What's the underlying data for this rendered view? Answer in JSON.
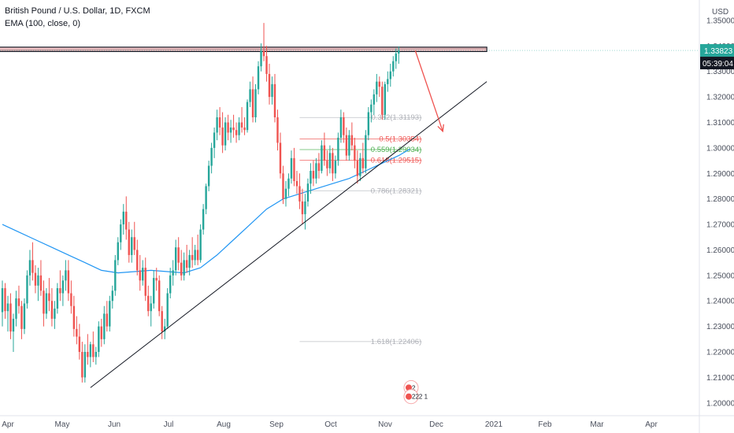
{
  "header": {
    "symbol_line": "British Pound / U.S. Dollar, 1D, FXCM",
    "indicator_line": "EMA (100, close, 0)"
  },
  "colors": {
    "up": "#26a69a",
    "down": "#ef5350",
    "ema": "#2196f3",
    "trendline": "#131722",
    "arrow": "#ef5350",
    "zone_fill": "#f3c5c8",
    "zone_border": "#131722",
    "last_price_badge": "#26a69a",
    "countdown_badge": "#131722",
    "fib_grey": "#9598a1",
    "fib_red": "#ef5350",
    "fib_green": "#4caf50"
  },
  "chart_data": {
    "type": "candlestick",
    "title": "British Pound / U.S. Dollar, 1D, FXCM",
    "currency": "USD",
    "ylim": [
      1.195,
      1.358
    ],
    "y_ticks": [
      "1.35000",
      "1.34000",
      "1.33000",
      "1.32000",
      "1.31000",
      "1.30000",
      "1.29000",
      "1.28000",
      "1.27000",
      "1.26000",
      "1.25000",
      "1.24000",
      "1.23000",
      "1.22000",
      "1.21000",
      "1.20000"
    ],
    "x_ticks": [
      "Apr",
      "May",
      "Jun",
      "Jul",
      "Aug",
      "Sep",
      "Oct",
      "Nov",
      "Dec",
      "2021",
      "Feb",
      "Mar",
      "Apr"
    ],
    "last_price": "1.33823",
    "countdown": "05:39:04",
    "ohlc_start": "2020-03-25",
    "ohlc": [
      [
        1.2356,
        1.248,
        1.23,
        1.245
      ],
      [
        1.245,
        1.247,
        1.233,
        1.236
      ],
      [
        1.236,
        1.242,
        1.228,
        1.239
      ],
      [
        1.239,
        1.243,
        1.225,
        1.228
      ],
      [
        1.228,
        1.235,
        1.22,
        1.233
      ],
      [
        1.233,
        1.244,
        1.23,
        1.241
      ],
      [
        1.241,
        1.246,
        1.235,
        1.238
      ],
      [
        1.238,
        1.24,
        1.225,
        1.229
      ],
      [
        1.229,
        1.241,
        1.227,
        1.239
      ],
      [
        1.239,
        1.252,
        1.237,
        1.25
      ],
      [
        1.25,
        1.26,
        1.246,
        1.256
      ],
      [
        1.256,
        1.263,
        1.248,
        1.251
      ],
      [
        1.251,
        1.254,
        1.243,
        1.246
      ],
      [
        1.246,
        1.253,
        1.24,
        1.25
      ],
      [
        1.25,
        1.256,
        1.242,
        1.244
      ],
      [
        1.244,
        1.248,
        1.23,
        1.235
      ],
      [
        1.235,
        1.245,
        1.233,
        1.243
      ],
      [
        1.243,
        1.249,
        1.236,
        1.24
      ],
      [
        1.24,
        1.245,
        1.23,
        1.233
      ],
      [
        1.233,
        1.24,
        1.229,
        1.237
      ],
      [
        1.237,
        1.247,
        1.235,
        1.245
      ],
      [
        1.245,
        1.252,
        1.24,
        1.243
      ],
      [
        1.243,
        1.25,
        1.238,
        1.248
      ],
      [
        1.248,
        1.256,
        1.244,
        1.252
      ],
      [
        1.252,
        1.256,
        1.24,
        1.243
      ],
      [
        1.243,
        1.248,
        1.235,
        1.238
      ],
      [
        1.238,
        1.242,
        1.226,
        1.229
      ],
      [
        1.229,
        1.234,
        1.223,
        1.226
      ],
      [
        1.226,
        1.231,
        1.217,
        1.22
      ],
      [
        1.22,
        1.224,
        1.208,
        1.21
      ],
      [
        1.21,
        1.223,
        1.208,
        1.22
      ],
      [
        1.22,
        1.227,
        1.215,
        1.218
      ],
      [
        1.218,
        1.224,
        1.214,
        1.223
      ],
      [
        1.223,
        1.228,
        1.216,
        1.218
      ],
      [
        1.218,
        1.222,
        1.215,
        1.22
      ],
      [
        1.22,
        1.232,
        1.218,
        1.23
      ],
      [
        1.23,
        1.233,
        1.222,
        1.225
      ],
      [
        1.225,
        1.238,
        1.223,
        1.235
      ],
      [
        1.235,
        1.24,
        1.228,
        1.23
      ],
      [
        1.23,
        1.242,
        1.228,
        1.24
      ],
      [
        1.24,
        1.246,
        1.237,
        1.244
      ],
      [
        1.244,
        1.258,
        1.242,
        1.256
      ],
      [
        1.256,
        1.265,
        1.254,
        1.263
      ],
      [
        1.263,
        1.272,
        1.26,
        1.27
      ],
      [
        1.27,
        1.278,
        1.266,
        1.275
      ],
      [
        1.275,
        1.281,
        1.264,
        1.268
      ],
      [
        1.268,
        1.271,
        1.255,
        1.258
      ],
      [
        1.258,
        1.268,
        1.255,
        1.265
      ],
      [
        1.265,
        1.271,
        1.258,
        1.26
      ],
      [
        1.26,
        1.264,
        1.25,
        1.252
      ],
      [
        1.252,
        1.258,
        1.244,
        1.248
      ],
      [
        1.248,
        1.256,
        1.246,
        1.253
      ],
      [
        1.253,
        1.257,
        1.24,
        1.242
      ],
      [
        1.242,
        1.246,
        1.234,
        1.236
      ],
      [
        1.236,
        1.242,
        1.23,
        1.239
      ],
      [
        1.239,
        1.252,
        1.237,
        1.249
      ],
      [
        1.249,
        1.253,
        1.244,
        1.248
      ],
      [
        1.248,
        1.25,
        1.234,
        1.236
      ],
      [
        1.236,
        1.238,
        1.225,
        1.228
      ],
      [
        1.228,
        1.233,
        1.225,
        1.23
      ],
      [
        1.23,
        1.245,
        1.229,
        1.243
      ],
      [
        1.243,
        1.253,
        1.241,
        1.25
      ],
      [
        1.25,
        1.256,
        1.246,
        1.252
      ],
      [
        1.252,
        1.264,
        1.25,
        1.261
      ],
      [
        1.261,
        1.265,
        1.252,
        1.255
      ],
      [
        1.255,
        1.26,
        1.248,
        1.25
      ],
      [
        1.25,
        1.259,
        1.248,
        1.256
      ],
      [
        1.256,
        1.262,
        1.251,
        1.253
      ],
      [
        1.253,
        1.26,
        1.25,
        1.258
      ],
      [
        1.258,
        1.265,
        1.253,
        1.256
      ],
      [
        1.256,
        1.262,
        1.254,
        1.26
      ],
      [
        1.26,
        1.266,
        1.254,
        1.256
      ],
      [
        1.256,
        1.27,
        1.255,
        1.268
      ],
      [
        1.268,
        1.278,
        1.266,
        1.276
      ],
      [
        1.276,
        1.286,
        1.274,
        1.285
      ],
      [
        1.285,
        1.295,
        1.283,
        1.293
      ],
      [
        1.293,
        1.302,
        1.29,
        1.3
      ],
      [
        1.3,
        1.308,
        1.296,
        1.306
      ],
      [
        1.306,
        1.315,
        1.303,
        1.312
      ],
      [
        1.312,
        1.316,
        1.305,
        1.308
      ],
      [
        1.308,
        1.314,
        1.298,
        1.301
      ],
      [
        1.301,
        1.312,
        1.299,
        1.31
      ],
      [
        1.31,
        1.313,
        1.303,
        1.306
      ],
      [
        1.306,
        1.311,
        1.302,
        1.308
      ],
      [
        1.308,
        1.313,
        1.304,
        1.307
      ],
      [
        1.307,
        1.31,
        1.302,
        1.305
      ],
      [
        1.305,
        1.312,
        1.303,
        1.31
      ],
      [
        1.31,
        1.316,
        1.306,
        1.308
      ],
      [
        1.308,
        1.312,
        1.305,
        1.307
      ],
      [
        1.307,
        1.319,
        1.306,
        1.318
      ],
      [
        1.318,
        1.326,
        1.316,
        1.323
      ],
      [
        1.323,
        1.328,
        1.31,
        1.312
      ],
      [
        1.312,
        1.325,
        1.31,
        1.323
      ],
      [
        1.323,
        1.334,
        1.321,
        1.332
      ],
      [
        1.332,
        1.341,
        1.33,
        1.338
      ],
      [
        1.338,
        1.349,
        1.334,
        1.336
      ],
      [
        1.336,
        1.34,
        1.326,
        1.329
      ],
      [
        1.329,
        1.333,
        1.317,
        1.32
      ],
      [
        1.32,
        1.328,
        1.317,
        1.325
      ],
      [
        1.325,
        1.329,
        1.31,
        1.312
      ],
      [
        1.312,
        1.315,
        1.299,
        1.302
      ],
      [
        1.302,
        1.306,
        1.288,
        1.29
      ],
      [
        1.29,
        1.293,
        1.278,
        1.28
      ],
      [
        1.28,
        1.287,
        1.277,
        1.284
      ],
      [
        1.284,
        1.29,
        1.281,
        1.288
      ],
      [
        1.288,
        1.299,
        1.286,
        1.296
      ],
      [
        1.296,
        1.3,
        1.285,
        1.287
      ],
      [
        1.287,
        1.291,
        1.282,
        1.285
      ],
      [
        1.285,
        1.29,
        1.276,
        1.279
      ],
      [
        1.279,
        1.284,
        1.27,
        1.274
      ],
      [
        1.274,
        1.282,
        1.268,
        1.279
      ],
      [
        1.279,
        1.288,
        1.277,
        1.286
      ],
      [
        1.286,
        1.294,
        1.282,
        1.291
      ],
      [
        1.291,
        1.295,
        1.285,
        1.288
      ],
      [
        1.288,
        1.296,
        1.286,
        1.294
      ],
      [
        1.294,
        1.298,
        1.288,
        1.291
      ],
      [
        1.291,
        1.303,
        1.29,
        1.301
      ],
      [
        1.301,
        1.306,
        1.293,
        1.295
      ],
      [
        1.295,
        1.299,
        1.289,
        1.292
      ],
      [
        1.292,
        1.301,
        1.29,
        1.298
      ],
      [
        1.298,
        1.3,
        1.287,
        1.29
      ],
      [
        1.29,
        1.297,
        1.288,
        1.295
      ],
      [
        1.295,
        1.306,
        1.293,
        1.304
      ],
      [
        1.304,
        1.315,
        1.302,
        1.312
      ],
      [
        1.312,
        1.314,
        1.302,
        1.305
      ],
      [
        1.305,
        1.308,
        1.295,
        1.297
      ],
      [
        1.297,
        1.307,
        1.295,
        1.305
      ],
      [
        1.305,
        1.31,
        1.299,
        1.301
      ],
      [
        1.301,
        1.304,
        1.292,
        1.295
      ],
      [
        1.295,
        1.299,
        1.286,
        1.289
      ],
      [
        1.289,
        1.298,
        1.287,
        1.296
      ],
      [
        1.296,
        1.302,
        1.29,
        1.292
      ],
      [
        1.292,
        1.307,
        1.29,
        1.305
      ],
      [
        1.305,
        1.316,
        1.303,
        1.314
      ],
      [
        1.314,
        1.319,
        1.31,
        1.317
      ],
      [
        1.317,
        1.323,
        1.313,
        1.321
      ],
      [
        1.321,
        1.329,
        1.318,
        1.326
      ],
      [
        1.326,
        1.328,
        1.32,
        1.324
      ],
      [
        1.324,
        1.326,
        1.311,
        1.313
      ],
      [
        1.313,
        1.326,
        1.311,
        1.325
      ],
      [
        1.325,
        1.33,
        1.322,
        1.327
      ],
      [
        1.327,
        1.333,
        1.324,
        1.33
      ],
      [
        1.33,
        1.336,
        1.328,
        1.334
      ],
      [
        1.334,
        1.339,
        1.331,
        1.337
      ],
      [
        1.337,
        1.3398,
        1.333,
        1.3382
      ]
    ],
    "ema_100": [
      [
        0,
        1.27
      ],
      [
        6,
        1.267
      ],
      [
        12,
        1.264
      ],
      [
        18,
        1.261
      ],
      [
        24,
        1.258
      ],
      [
        30,
        1.255
      ],
      [
        36,
        1.252
      ],
      [
        42,
        1.251
      ],
      [
        48,
        1.2515
      ],
      [
        54,
        1.252
      ],
      [
        60,
        1.2515
      ],
      [
        66,
        1.251
      ],
      [
        72,
        1.253
      ],
      [
        78,
        1.258
      ],
      [
        84,
        1.264
      ],
      [
        90,
        1.27
      ],
      [
        96,
        1.276
      ],
      [
        102,
        1.28
      ],
      [
        108,
        1.282
      ],
      [
        114,
        1.284
      ],
      [
        120,
        1.286
      ],
      [
        126,
        1.288
      ],
      [
        132,
        1.291
      ],
      [
        138,
        1.294
      ],
      [
        144,
        1.297
      ],
      [
        148,
        1.2995
      ]
    ],
    "fibonacci": {
      "levels": [
        {
          "label": "0.382(1.31193)",
          "price": 1.31193,
          "color": "grey"
        },
        {
          "label": "0.5(1.30354)",
          "price": 1.30354,
          "color": "red"
        },
        {
          "label": "0.559(1.29934)",
          "price": 1.29934,
          "color": "green"
        },
        {
          "label": "0.618(1.29515)",
          "price": 1.29515,
          "color": "red"
        },
        {
          "label": "0.786(1.28321)",
          "price": 1.28321,
          "color": "grey"
        },
        {
          "label": "1.618(1.22406)",
          "price": 1.22406,
          "color": "grey"
        }
      ],
      "start_index": 108,
      "end_index": 150
    },
    "resistance_zone": {
      "start_index": -6,
      "end_index": 176,
      "top": 1.3395,
      "bottom": 1.3378
    },
    "trendline": {
      "p1": [
        32,
        1.206
      ],
      "p2": [
        176,
        1.326
      ]
    },
    "arrow": {
      "from": [
        150,
        1.3382
      ],
      "to": [
        160,
        1.3065
      ]
    },
    "events": [
      {
        "label": "2",
        "index": 148.5,
        "price": 1.206
      },
      {
        "label": "222 1",
        "index": 148.5,
        "price": 1.2025
      }
    ]
  }
}
